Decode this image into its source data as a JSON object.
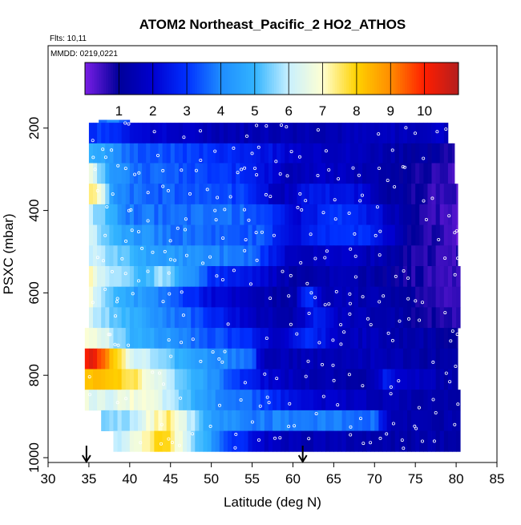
{
  "chart_data": {
    "type": "heatmap",
    "title": "ATOM2 Northeast_Pacific_2 HO2_ATHOS",
    "flights_note": "Flts: 10,11",
    "dates_note": "MMDD: 0219,0221",
    "xlabel": "Latitude (deg N)",
    "ylabel": "PSXC (mbar)",
    "xlim": [
      30,
      85
    ],
    "ylim": [
      1000,
      0
    ],
    "x_ticks": [
      30,
      35,
      40,
      45,
      50,
      55,
      60,
      65,
      70,
      75,
      80,
      85
    ],
    "y_ticks": [
      200,
      400,
      600,
      800,
      1000
    ],
    "colorbar": {
      "range": [
        0,
        11
      ],
      "tick_values": [
        1,
        2,
        3,
        4,
        5,
        6,
        7,
        8,
        9,
        10
      ],
      "colors": [
        "#7a1ee6",
        "#000099",
        "#0000d0",
        "#0030ff",
        "#1e8cff",
        "#32b4ff",
        "#c8f0ff",
        "#ffffd2",
        "#ffd200",
        "#ff8c00",
        "#ff1e00",
        "#b41e1e"
      ]
    },
    "profile_markers_lat": [
      34.7,
      61.2
    ],
    "rows": [
      {
        "p": 200,
        "lat_start": 36.2,
        "lat_end": 40.0,
        "stops": [
          [
            36.2,
            3.5
          ],
          [
            38.0,
            4.2
          ],
          [
            40.0,
            3.0
          ]
        ]
      },
      {
        "p": 212,
        "lat_start": 35.0,
        "lat_end": 79.0,
        "stops": [
          [
            35.0,
            3.0
          ],
          [
            38.0,
            3.0
          ],
          [
            42.0,
            2.0
          ],
          [
            50.0,
            1.6
          ],
          [
            60.0,
            1.5
          ],
          [
            70.0,
            1.6
          ],
          [
            79.0,
            1.8
          ]
        ]
      },
      {
        "p": 262,
        "lat_start": 35.0,
        "lat_end": 79.8,
        "stops": [
          [
            35.0,
            5.0
          ],
          [
            37.0,
            4.5
          ],
          [
            40.0,
            3.5
          ],
          [
            45.0,
            3.3
          ],
          [
            50.0,
            3.0
          ],
          [
            55.0,
            2.6
          ],
          [
            60.0,
            2.0
          ],
          [
            65.0,
            1.8
          ],
          [
            70.0,
            1.5
          ],
          [
            75.0,
            1.2
          ],
          [
            79.8,
            0.8
          ]
        ]
      },
      {
        "p": 310,
        "lat_start": 35.0,
        "lat_end": 79.8,
        "stops": [
          [
            35.0,
            7.2
          ],
          [
            36.0,
            6.0
          ],
          [
            38.0,
            4.2
          ],
          [
            42.0,
            3.6
          ],
          [
            48.0,
            3.2
          ],
          [
            55.0,
            2.8
          ],
          [
            60.0,
            1.5
          ],
          [
            65.0,
            1.8
          ],
          [
            70.0,
            1.4
          ],
          [
            75.0,
            0.9
          ],
          [
            79.8,
            0.6
          ]
        ]
      },
      {
        "p": 360,
        "lat_start": 35.0,
        "lat_end": 80.2,
        "stops": [
          [
            35.0,
            7.5
          ],
          [
            36.5,
            6.8
          ],
          [
            38.0,
            4.0
          ],
          [
            42.0,
            3.5
          ],
          [
            50.0,
            3.4
          ],
          [
            55.0,
            3.0
          ],
          [
            58.0,
            1.5
          ],
          [
            63.0,
            2.6
          ],
          [
            68.0,
            2.2
          ],
          [
            72.0,
            1.2
          ],
          [
            76.0,
            0.7
          ],
          [
            80.2,
            0.5
          ]
        ]
      },
      {
        "p": 410,
        "lat_start": 35.0,
        "lat_end": 80.2,
        "stops": [
          [
            35.0,
            6.0
          ],
          [
            37.0,
            5.2
          ],
          [
            40.0,
            3.8
          ],
          [
            45.0,
            3.6
          ],
          [
            52.0,
            3.7
          ],
          [
            56.0,
            3.3
          ],
          [
            60.0,
            2.0
          ],
          [
            65.0,
            3.0
          ],
          [
            70.0,
            2.4
          ],
          [
            74.0,
            1.0
          ],
          [
            80.2,
            0.4
          ]
        ]
      },
      {
        "p": 460,
        "lat_start": 35.0,
        "lat_end": 80.2,
        "stops": [
          [
            35.0,
            6.5
          ],
          [
            37.0,
            5.5
          ],
          [
            40.0,
            4.4
          ],
          [
            45.0,
            3.8
          ],
          [
            50.0,
            3.6
          ],
          [
            56.0,
            3.4
          ],
          [
            60.0,
            2.2
          ],
          [
            66.0,
            3.2
          ],
          [
            70.0,
            2.6
          ],
          [
            74.0,
            1.1
          ],
          [
            80.2,
            0.3
          ]
        ]
      },
      {
        "p": 510,
        "lat_start": 35.0,
        "lat_end": 80.2,
        "stops": [
          [
            35.0,
            6.2
          ],
          [
            38.0,
            5.6
          ],
          [
            42.0,
            4.6
          ],
          [
            48.0,
            4.1
          ],
          [
            55.0,
            3.6
          ],
          [
            60.0,
            1.6
          ],
          [
            65.0,
            1.9
          ],
          [
            70.0,
            1.5
          ],
          [
            75.0,
            0.8
          ],
          [
            80.2,
            0.6
          ]
        ]
      },
      {
        "p": 560,
        "lat_start": 35.0,
        "lat_end": 80.5,
        "stops": [
          [
            35.0,
            7.2
          ],
          [
            36.0,
            6.5
          ],
          [
            38.0,
            5.8
          ],
          [
            42.0,
            5.0
          ],
          [
            44.0,
            5.8
          ],
          [
            46.0,
            4.8
          ],
          [
            50.0,
            3.0
          ],
          [
            55.0,
            2.4
          ],
          [
            60.0,
            1.3
          ],
          [
            65.0,
            1.5
          ],
          [
            70.0,
            1.3
          ],
          [
            75.0,
            0.8
          ],
          [
            80.5,
            0.6
          ]
        ]
      },
      {
        "p": 610,
        "lat_start": 35.0,
        "lat_end": 80.5,
        "stops": [
          [
            35.0,
            6.8
          ],
          [
            37.0,
            5.6
          ],
          [
            40.0,
            4.6
          ],
          [
            45.0,
            3.6
          ],
          [
            50.0,
            2.2
          ],
          [
            55.0,
            1.5
          ],
          [
            60.0,
            1.2
          ],
          [
            62.0,
            3.2
          ],
          [
            64.0,
            1.6
          ],
          [
            70.0,
            1.4
          ],
          [
            75.0,
            0.9
          ],
          [
            80.5,
            0.5
          ]
        ]
      },
      {
        "p": 660,
        "lat_start": 35.0,
        "lat_end": 80.5,
        "stops": [
          [
            35.0,
            6.2
          ],
          [
            38.0,
            5.4
          ],
          [
            42.0,
            4.4
          ],
          [
            48.0,
            3.4
          ],
          [
            52.0,
            2.4
          ],
          [
            56.0,
            1.6
          ],
          [
            60.0,
            1.4
          ],
          [
            63.0,
            2.6
          ],
          [
            66.0,
            1.7
          ],
          [
            70.0,
            1.5
          ],
          [
            75.0,
            1.0
          ],
          [
            80.5,
            0.5
          ]
        ]
      },
      {
        "p": 710,
        "lat_start": 34.5,
        "lat_end": 80.2,
        "stops": [
          [
            34.5,
            7.2
          ],
          [
            37.0,
            6.3
          ],
          [
            40.0,
            5.0
          ],
          [
            45.0,
            4.2
          ],
          [
            50.0,
            3.4
          ],
          [
            55.0,
            2.8
          ],
          [
            58.0,
            1.8
          ],
          [
            62.0,
            2.9
          ],
          [
            66.0,
            1.8
          ],
          [
            70.0,
            1.5
          ],
          [
            75.0,
            1.3
          ],
          [
            80.2,
            1.1
          ]
        ]
      },
      {
        "p": 760,
        "lat_start": 34.5,
        "lat_end": 80.2,
        "stops": [
          [
            34.5,
            10.4
          ],
          [
            36.0,
            10.0
          ],
          [
            38.0,
            8.3
          ],
          [
            40.0,
            6.5
          ],
          [
            45.0,
            5.2
          ],
          [
            50.0,
            4.2
          ],
          [
            55.0,
            3.6
          ],
          [
            56.0,
            1.7
          ],
          [
            60.0,
            1.5
          ],
          [
            70.0,
            1.6
          ],
          [
            75.0,
            1.3
          ],
          [
            80.2,
            1.1
          ]
        ]
      },
      {
        "p": 810,
        "lat_start": 34.5,
        "lat_end": 80.2,
        "stops": [
          [
            34.5,
            8.0
          ],
          [
            37.0,
            8.2
          ],
          [
            40.0,
            7.8
          ],
          [
            43.0,
            6.6
          ],
          [
            47.0,
            5.2
          ],
          [
            50.0,
            4.2
          ],
          [
            53.0,
            3.2
          ],
          [
            57.0,
            2.0
          ],
          [
            62.0,
            1.4
          ],
          [
            70.0,
            1.3
          ],
          [
            71.0,
            2.6
          ],
          [
            76.0,
            1.6
          ],
          [
            80.2,
            1.2
          ]
        ]
      },
      {
        "p": 860,
        "lat_start": 34.5,
        "lat_end": 80.5,
        "stops": [
          [
            34.5,
            6.6
          ],
          [
            37.0,
            6.2
          ],
          [
            40.0,
            6.8
          ],
          [
            43.0,
            6.6
          ],
          [
            46.0,
            5.4
          ],
          [
            50.0,
            4.2
          ],
          [
            55.0,
            3.6
          ],
          [
            60.0,
            2.2
          ],
          [
            64.0,
            1.9
          ],
          [
            70.0,
            1.6
          ],
          [
            75.0,
            1.4
          ],
          [
            80.5,
            1.4
          ]
        ]
      },
      {
        "p": 910,
        "lat_start": 36.5,
        "lat_end": 80.5,
        "stops": [
          [
            36.5,
            5.5
          ],
          [
            40.0,
            5.8
          ],
          [
            43.0,
            7.0
          ],
          [
            45.0,
            7.6
          ],
          [
            47.0,
            6.2
          ],
          [
            50.0,
            4.4
          ],
          [
            55.0,
            3.8
          ],
          [
            60.0,
            3.9
          ],
          [
            65.0,
            3.8
          ],
          [
            70.0,
            3.6
          ],
          [
            72.0,
            1.5
          ],
          [
            76.0,
            1.4
          ],
          [
            80.5,
            1.3
          ]
        ]
      },
      {
        "p": 960,
        "lat_start": 38.0,
        "lat_end": 80.5,
        "stops": [
          [
            38.0,
            5.8
          ],
          [
            41.0,
            6.8
          ],
          [
            44.0,
            8.2
          ],
          [
            45.5,
            7.2
          ],
          [
            48.0,
            5.4
          ],
          [
            52.0,
            3.4
          ],
          [
            56.0,
            1.9
          ],
          [
            60.0,
            1.5
          ],
          [
            65.0,
            1.5
          ],
          [
            70.0,
            1.3
          ],
          [
            75.0,
            1.3
          ],
          [
            80.5,
            1.3
          ]
        ]
      }
    ],
    "point_density": 0.18
  }
}
